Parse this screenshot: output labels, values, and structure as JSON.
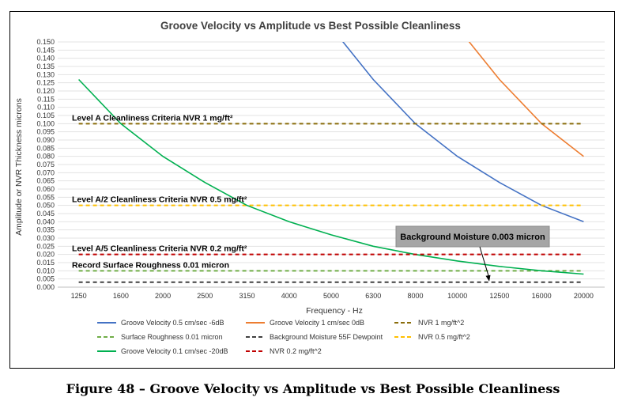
{
  "figure": {
    "caption": "Figure 48 – Groove Velocity vs Amplitude vs Best Possible Cleanliness"
  },
  "chart_data": {
    "type": "line",
    "title": "Groove Velocity vs Amplitude vs Best Possible Cleanliness",
    "xlabel": "Frequency - Hz",
    "ylabel": "Amplitude or NVR Thickness microns",
    "categories": [
      "1250",
      "1600",
      "2000",
      "2500",
      "3150",
      "4000",
      "5000",
      "6300",
      "8000",
      "10000",
      "12500",
      "16000",
      "20000"
    ],
    "ylim": [
      0,
      0.15
    ],
    "ytick_step": 0.005,
    "grid": "horizontal",
    "legend_position": "bottom",
    "series": [
      {
        "name": "Groove Velocity 0.5 cm/sec -6dB",
        "color": "#4472c4",
        "dash": "solid",
        "values": [
          null,
          null,
          null,
          null,
          null,
          null,
          0.159,
          0.127,
          0.1,
          0.08,
          0.064,
          0.05,
          0.04
        ]
      },
      {
        "name": "Groove Velocity 1 cm/sec 0dB",
        "color": "#ed7d31",
        "dash": "solid",
        "values": [
          null,
          null,
          null,
          null,
          null,
          null,
          null,
          null,
          null,
          0.159,
          0.127,
          0.1,
          0.08
        ]
      },
      {
        "name": "NVR 1 mg/ft^2",
        "color": "#8a6d0b",
        "dash": "dashed",
        "values": [
          0.1,
          0.1,
          0.1,
          0.1,
          0.1,
          0.1,
          0.1,
          0.1,
          0.1,
          0.1,
          0.1,
          0.1,
          0.1
        ]
      },
      {
        "name": "Surface Roughness 0.01 micron",
        "color": "#70ad47",
        "dash": "dashed",
        "values": [
          0.01,
          0.01,
          0.01,
          0.01,
          0.01,
          0.01,
          0.01,
          0.01,
          0.01,
          0.01,
          0.01,
          0.01,
          0.01
        ]
      },
      {
        "name": "Background Moisture 55F Dewpoint",
        "color": "#404040",
        "dash": "dashed",
        "values": [
          0.003,
          0.003,
          0.003,
          0.003,
          0.003,
          0.003,
          0.003,
          0.003,
          0.003,
          0.003,
          0.003,
          0.003,
          0.003
        ]
      },
      {
        "name": "NVR 0.5 mg/ft^2",
        "color": "#ffc000",
        "dash": "dashed",
        "values": [
          0.05,
          0.05,
          0.05,
          0.05,
          0.05,
          0.05,
          0.05,
          0.05,
          0.05,
          0.05,
          0.05,
          0.05,
          0.05
        ]
      },
      {
        "name": "Groove Velocity 0.1 cm/sec -20dB",
        "color": "#00b050",
        "dash": "solid",
        "values": [
          0.127,
          0.1,
          0.08,
          0.064,
          0.05,
          0.04,
          0.032,
          0.025,
          0.02,
          0.016,
          0.0127,
          0.01,
          0.008
        ]
      },
      {
        "name": "NVR 0.2 mg/ft^2",
        "color": "#c00000",
        "dash": "dashed",
        "values": [
          0.02,
          0.02,
          0.02,
          0.02,
          0.02,
          0.02,
          0.02,
          0.02,
          0.02,
          0.02,
          0.02,
          0.02,
          0.02
        ]
      }
    ],
    "annotations": [
      {
        "text": "Level A Cleanliness Criteria NVR 1 mg/ft²",
        "y": 0.1
      },
      {
        "text": "Level A/2 Cleanliness Criteria NVR 0.5 mg/ft²",
        "y": 0.05
      },
      {
        "text": "Level A/5 Cleanliness Criteria NVR 0.2 mg/ft²",
        "y": 0.02
      },
      {
        "text": "Record Surface Roughness 0.01 micron",
        "y": 0.01
      }
    ],
    "callout": {
      "text": "Background Moisture 0.003 micron",
      "points_to_y": 0.003
    }
  }
}
